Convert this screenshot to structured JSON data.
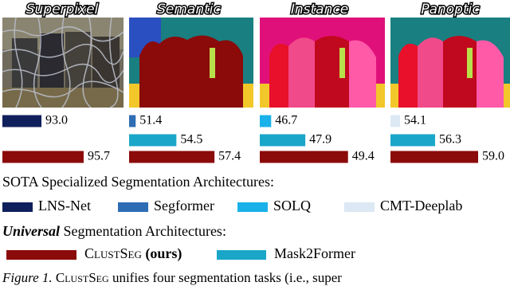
{
  "chart_data": [
    {
      "type": "bar",
      "orientation": "horizontal",
      "title": "Superpixel",
      "values": [
        93.0,
        null,
        95.7
      ],
      "value_labels": [
        "93.0",
        null,
        "95.7"
      ],
      "colors": [
        "#10205c",
        null,
        "#8b0a0a"
      ],
      "xlim": [
        90.5,
        98.15
      ]
    },
    {
      "type": "bar",
      "orientation": "horizontal",
      "title": "Semantic",
      "values": [
        51.4,
        54.5,
        57.4
      ],
      "value_labels": [
        "51.4",
        "54.5",
        "57.4"
      ],
      "colors": [
        "#2e6db4",
        "#1aa6c9",
        "#8b0a0a"
      ],
      "xlim": [
        50.9,
        60
      ]
    },
    {
      "type": "bar",
      "orientation": "horizontal",
      "title": "Instance",
      "values": [
        46.7,
        47.9,
        49.4
      ],
      "value_labels": [
        "46.7",
        "47.9",
        "49.4"
      ],
      "colors": [
        "#1ab0ea",
        "#1aa6c9",
        "#8b0a0a"
      ],
      "xlim": [
        46.3,
        50.5
      ]
    },
    {
      "type": "bar",
      "orientation": "horizontal",
      "title": "Panoptic",
      "values": [
        54.1,
        56.3,
        59.0
      ],
      "value_labels": [
        "54.1",
        "56.3",
        "59.0"
      ],
      "colors": [
        "#dce8f4",
        "#1aa6c9",
        "#8b0a0a"
      ],
      "xlim": [
        53.5,
        61
      ]
    }
  ],
  "legend": {
    "specialized_title": "SOTA Specialized Segmentation Architectures:",
    "specialized": [
      {
        "name": "LNS-Net",
        "color": "#10205c"
      },
      {
        "name": "Segformer",
        "color": "#2e6db4"
      },
      {
        "name": "SOLQ",
        "color": "#1ab0ea"
      },
      {
        "name": "CMT-Deeplab",
        "color": "#dce8f4"
      }
    ],
    "universal_title_emph": "Universal",
    "universal_title": "Segmentation Architectures:",
    "ours_name": "ClustSeg",
    "ours_tag": "(ours)",
    "ours_color": "#8b0a0a",
    "other_name": "Mask2Former",
    "other_color": "#1aa6c9"
  },
  "caption": {
    "label": "Figure 1.",
    "name": "ClustSeg",
    "text": "unifies four segmentation tasks (i.e., super"
  }
}
